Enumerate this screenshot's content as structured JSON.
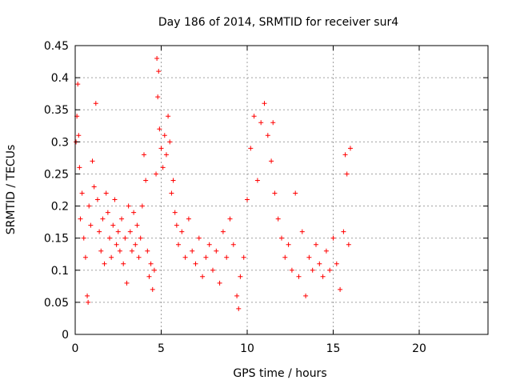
{
  "chart_data": {
    "type": "scatter",
    "title": "Day 186 of 2014, SRMTID for receiver sur4",
    "xlabel": "GPS time / hours",
    "ylabel": "SRMTID / TECUs",
    "xlim": [
      0,
      24
    ],
    "ylim": [
      0,
      0.45
    ],
    "xticks": [
      0,
      5,
      10,
      15,
      20
    ],
    "xtick_labels": [
      "0",
      "5",
      "10",
      "15",
      "20"
    ],
    "yticks": [
      0,
      0.05,
      0.1,
      0.15,
      0.2,
      0.25,
      0.3,
      0.35,
      0.4,
      0.45
    ],
    "ytick_labels": [
      "0",
      "0.05",
      "0.1",
      "0.15",
      "0.2",
      "0.25",
      "0.3",
      "0.35",
      "0.4",
      "0.45"
    ],
    "grid": true,
    "marker": "+",
    "color": "#ff0000",
    "series": [
      {
        "name": "sur4",
        "points": [
          [
            0.05,
            0.3
          ],
          [
            0.1,
            0.34
          ],
          [
            0.15,
            0.39
          ],
          [
            0.2,
            0.31
          ],
          [
            0.25,
            0.26
          ],
          [
            0.3,
            0.18
          ],
          [
            0.4,
            0.22
          ],
          [
            0.5,
            0.15
          ],
          [
            0.6,
            0.12
          ],
          [
            0.7,
            0.06
          ],
          [
            0.75,
            0.05
          ],
          [
            0.8,
            0.2
          ],
          [
            0.9,
            0.17
          ],
          [
            1.0,
            0.27
          ],
          [
            1.1,
            0.23
          ],
          [
            1.2,
            0.36
          ],
          [
            1.3,
            0.21
          ],
          [
            1.4,
            0.16
          ],
          [
            1.5,
            0.13
          ],
          [
            1.6,
            0.18
          ],
          [
            1.7,
            0.11
          ],
          [
            1.8,
            0.22
          ],
          [
            1.9,
            0.19
          ],
          [
            2.0,
            0.15
          ],
          [
            2.1,
            0.12
          ],
          [
            2.2,
            0.17
          ],
          [
            2.3,
            0.21
          ],
          [
            2.4,
            0.14
          ],
          [
            2.5,
            0.16
          ],
          [
            2.6,
            0.13
          ],
          [
            2.7,
            0.18
          ],
          [
            2.8,
            0.11
          ],
          [
            2.9,
            0.15
          ],
          [
            3.0,
            0.08
          ],
          [
            3.1,
            0.2
          ],
          [
            3.2,
            0.16
          ],
          [
            3.3,
            0.13
          ],
          [
            3.4,
            0.19
          ],
          [
            3.5,
            0.14
          ],
          [
            3.6,
            0.17
          ],
          [
            3.7,
            0.12
          ],
          [
            3.8,
            0.15
          ],
          [
            3.9,
            0.2
          ],
          [
            4.0,
            0.28
          ],
          [
            4.1,
            0.24
          ],
          [
            4.2,
            0.13
          ],
          [
            4.3,
            0.09
          ],
          [
            4.4,
            0.11
          ],
          [
            4.5,
            0.07
          ],
          [
            4.6,
            0.1
          ],
          [
            4.7,
            0.25
          ],
          [
            4.75,
            0.43
          ],
          [
            4.8,
            0.37
          ],
          [
            4.85,
            0.41
          ],
          [
            4.9,
            0.32
          ],
          [
            5.0,
            0.29
          ],
          [
            5.1,
            0.26
          ],
          [
            5.2,
            0.31
          ],
          [
            5.3,
            0.28
          ],
          [
            5.4,
            0.34
          ],
          [
            5.5,
            0.3
          ],
          [
            5.6,
            0.22
          ],
          [
            5.7,
            0.24
          ],
          [
            5.8,
            0.19
          ],
          [
            5.9,
            0.17
          ],
          [
            6.0,
            0.14
          ],
          [
            6.2,
            0.16
          ],
          [
            6.4,
            0.12
          ],
          [
            6.6,
            0.18
          ],
          [
            6.8,
            0.13
          ],
          [
            7.0,
            0.11
          ],
          [
            7.2,
            0.15
          ],
          [
            7.4,
            0.09
          ],
          [
            7.6,
            0.12
          ],
          [
            7.8,
            0.14
          ],
          [
            8.0,
            0.1
          ],
          [
            8.2,
            0.13
          ],
          [
            8.4,
            0.08
          ],
          [
            8.6,
            0.16
          ],
          [
            8.8,
            0.12
          ],
          [
            9.0,
            0.18
          ],
          [
            9.2,
            0.14
          ],
          [
            9.4,
            0.06
          ],
          [
            9.5,
            0.04
          ],
          [
            9.6,
            0.09
          ],
          [
            9.8,
            0.12
          ],
          [
            10.0,
            0.21
          ],
          [
            10.2,
            0.29
          ],
          [
            10.4,
            0.34
          ],
          [
            10.6,
            0.24
          ],
          [
            10.8,
            0.33
          ],
          [
            11.0,
            0.36
          ],
          [
            11.2,
            0.31
          ],
          [
            11.4,
            0.27
          ],
          [
            11.5,
            0.33
          ],
          [
            11.6,
            0.22
          ],
          [
            11.8,
            0.18
          ],
          [
            12.0,
            0.15
          ],
          [
            12.2,
            0.12
          ],
          [
            12.4,
            0.14
          ],
          [
            12.6,
            0.1
          ],
          [
            12.8,
            0.22
          ],
          [
            13.0,
            0.09
          ],
          [
            13.2,
            0.16
          ],
          [
            13.4,
            0.06
          ],
          [
            13.6,
            0.12
          ],
          [
            13.8,
            0.1
          ],
          [
            14.0,
            0.14
          ],
          [
            14.2,
            0.11
          ],
          [
            14.4,
            0.09
          ],
          [
            14.6,
            0.13
          ],
          [
            14.8,
            0.1
          ],
          [
            15.0,
            0.15
          ],
          [
            15.2,
            0.11
          ],
          [
            15.4,
            0.07
          ],
          [
            15.6,
            0.16
          ],
          [
            15.7,
            0.28
          ],
          [
            15.8,
            0.25
          ],
          [
            15.9,
            0.14
          ],
          [
            16.0,
            0.29
          ]
        ]
      }
    ]
  }
}
